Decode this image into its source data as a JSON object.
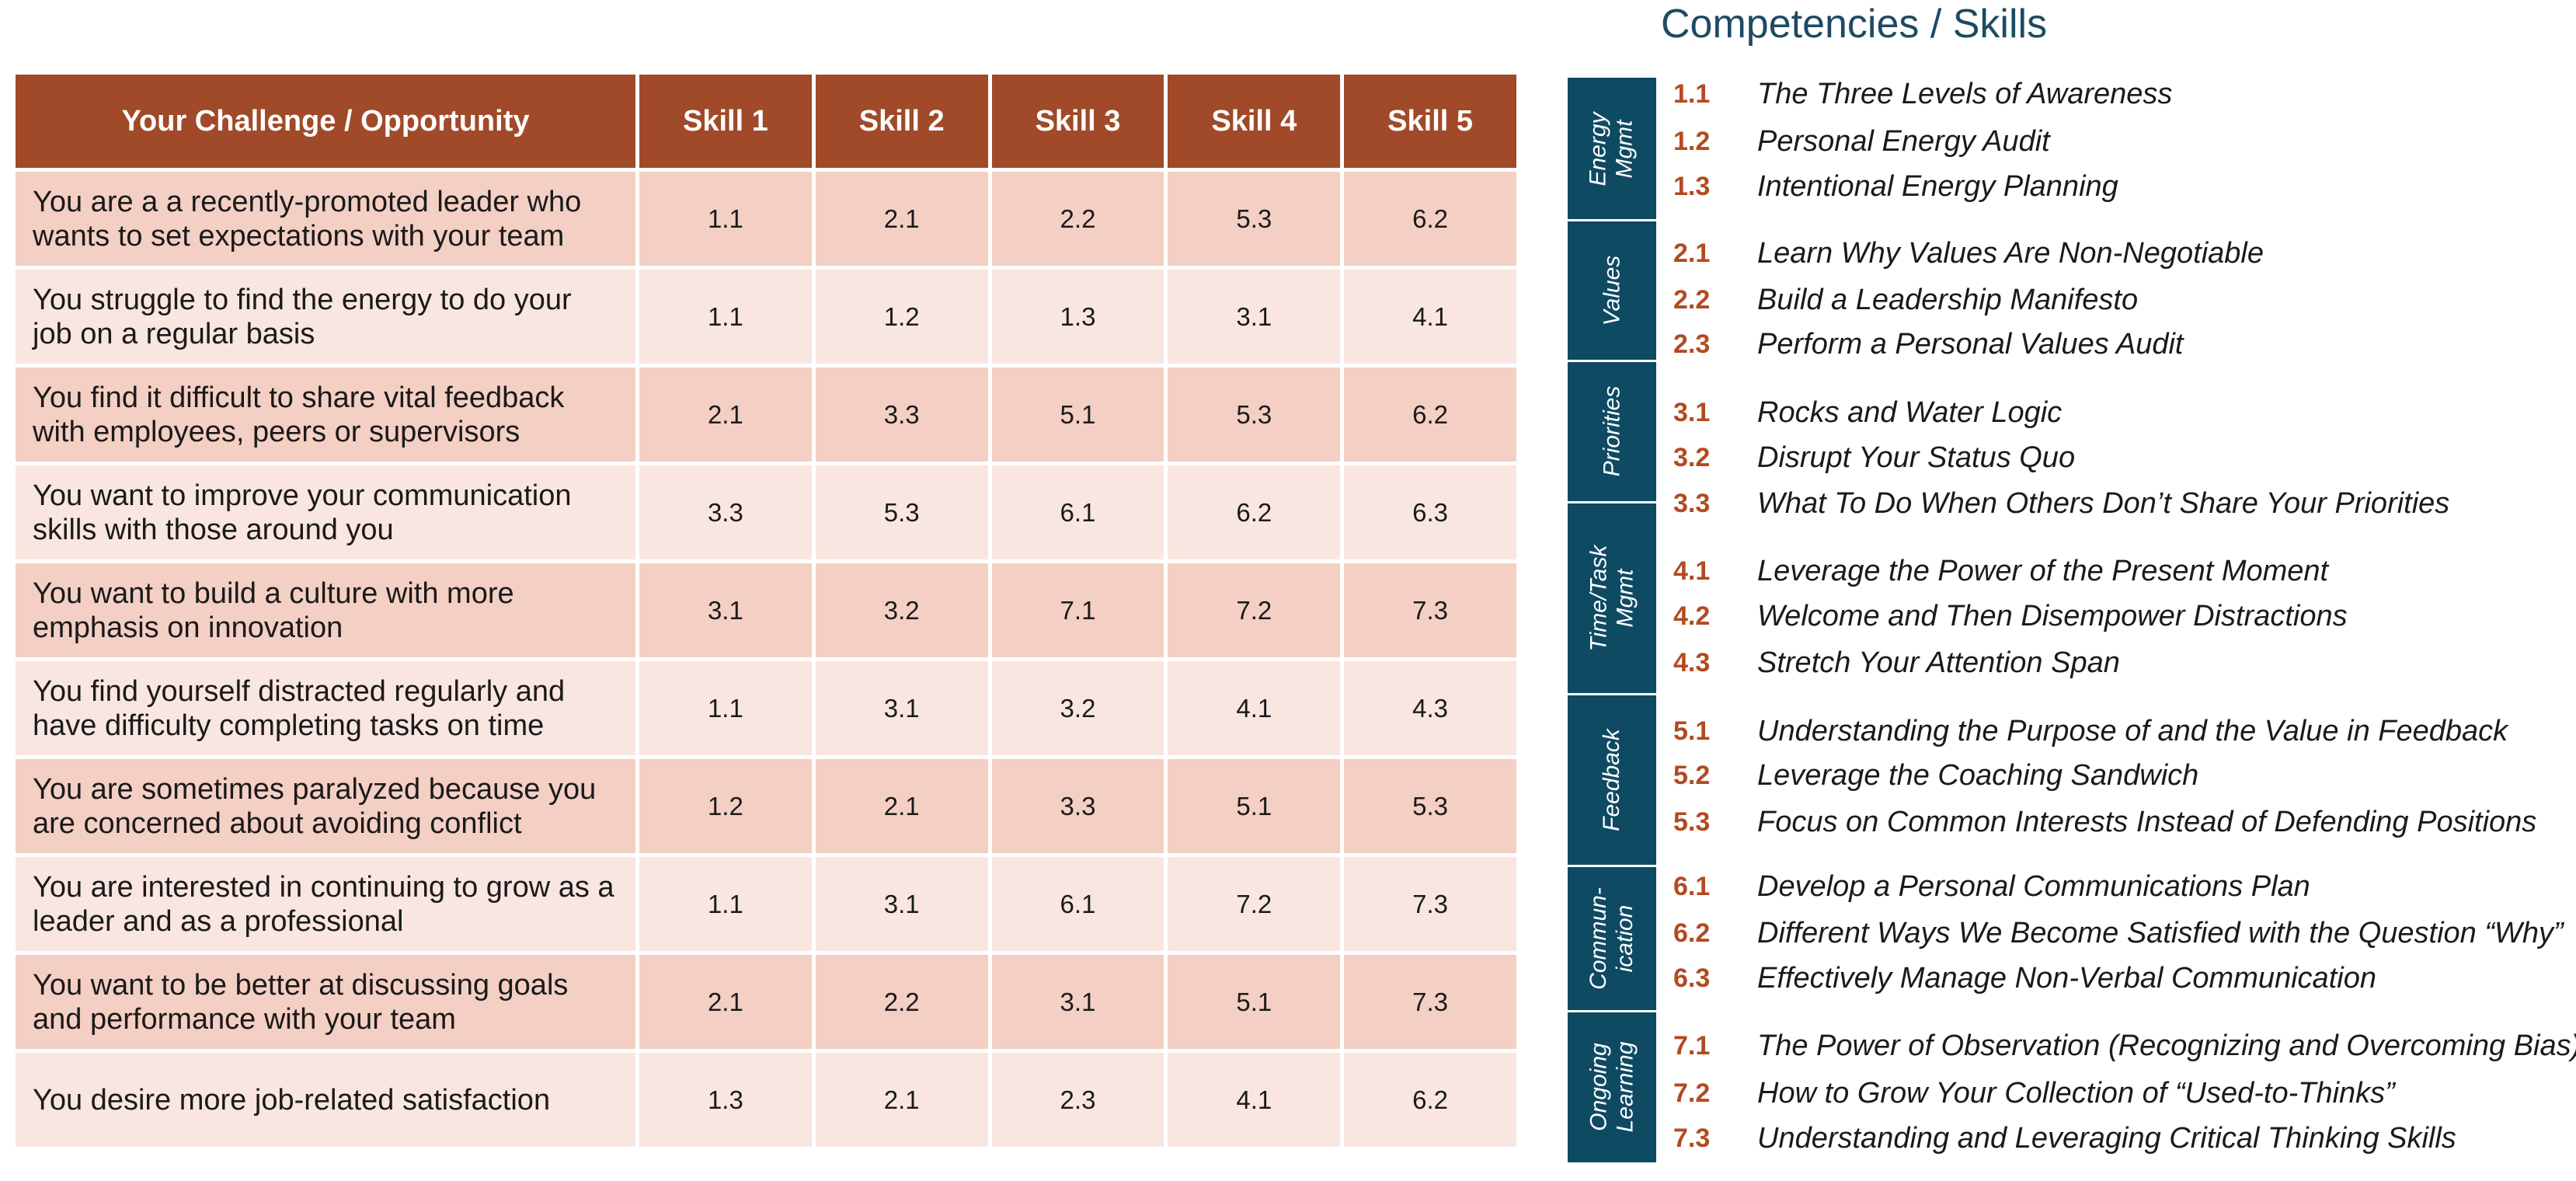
{
  "table": {
    "headers": [
      "Your Challenge / Opportunity",
      "Skill 1",
      "Skill 2",
      "Skill 3",
      "Skill 4",
      "Skill 5"
    ],
    "rows": [
      {
        "challenge": "You are a a recently-promoted leader who wants to set expectations with your team",
        "skills": [
          "1.1",
          "2.1",
          "2.2",
          "5.3",
          "6.2"
        ]
      },
      {
        "challenge": "You struggle to find the energy to do your job on a regular basis",
        "skills": [
          "1.1",
          "1.2",
          "1.3",
          "3.1",
          "4.1"
        ]
      },
      {
        "challenge": "You find it difficult to share vital feedback with employees, peers or supervisors",
        "skills": [
          "2.1",
          "3.3",
          "5.1",
          "5.3",
          "6.2"
        ]
      },
      {
        "challenge": "You want to improve your communication skills with those around you",
        "skills": [
          "3.3",
          "5.3",
          "6.1",
          "6.2",
          "6.3"
        ]
      },
      {
        "challenge": "You want to build a culture with more emphasis on innovation",
        "skills": [
          "3.1",
          "3.2",
          "7.1",
          "7.2",
          "7.3"
        ]
      },
      {
        "challenge": "You find yourself distracted regularly and have difficulty completing tasks on time",
        "skills": [
          "1.1",
          "3.1",
          "3.2",
          "4.1",
          "4.3"
        ]
      },
      {
        "challenge": "You are sometimes paralyzed because you are concerned about avoiding conflict",
        "skills": [
          "1.2",
          "2.1",
          "3.3",
          "5.1",
          "5.3"
        ]
      },
      {
        "challenge": "You are interested in continuing to grow as a leader and as a professional",
        "skills": [
          "1.1",
          "3.1",
          "6.1",
          "7.2",
          "7.3"
        ]
      },
      {
        "challenge": "You want to be better at discussing goals and performance with your team",
        "skills": [
          "2.1",
          "2.2",
          "3.1",
          "5.1",
          "7.3"
        ]
      },
      {
        "challenge": "You desire more job-related satisfaction",
        "skills": [
          "1.3",
          "2.1",
          "2.3",
          "4.1",
          "6.2"
        ]
      }
    ]
  },
  "competencies": {
    "title": "Competencies / Skills",
    "categories": [
      {
        "label": "Energy\nMgmt",
        "skills": [
          {
            "num": "1.1",
            "name": "The Three Levels of Awareness"
          },
          {
            "num": "1.2",
            "name": "Personal Energy Audit"
          },
          {
            "num": "1.3",
            "name": "Intentional Energy Planning"
          }
        ]
      },
      {
        "label": "Values",
        "skills": [
          {
            "num": "2.1",
            "name": "Learn Why Values Are Non-Negotiable"
          },
          {
            "num": "2.2",
            "name": "Build a Leadership Manifesto"
          },
          {
            "num": "2.3",
            "name": "Perform a Personal Values Audit"
          }
        ]
      },
      {
        "label": "Priorities",
        "skills": [
          {
            "num": "3.1",
            "name": "Rocks and Water Logic"
          },
          {
            "num": "3.2",
            "name": "Disrupt Your Status Quo"
          },
          {
            "num": "3.3",
            "name": "What To Do When Others Don’t Share Your Priorities"
          }
        ]
      },
      {
        "label": "Time/Task\nMgmt",
        "skills": [
          {
            "num": "4.1",
            "name": "Leverage the Power of the Present Moment"
          },
          {
            "num": "4.2",
            "name": "Welcome and Then Disempower Distractions"
          },
          {
            "num": "4.3",
            "name": "Stretch Your Attention Span"
          }
        ]
      },
      {
        "label": "Feedback",
        "skills": [
          {
            "num": "5.1",
            "name": "Understanding the Purpose of and the Value in Feedback"
          },
          {
            "num": "5.2",
            "name": "Leverage the Coaching Sandwich"
          },
          {
            "num": "5.3",
            "name": "Focus on Common Interests Instead of Defending Positions"
          }
        ]
      },
      {
        "label": "Commun-\nication",
        "skills": [
          {
            "num": "6.1",
            "name": "Develop a Personal Communications Plan"
          },
          {
            "num": "6.2",
            "name": "Different Ways We Become Satisfied with the Question “Why”"
          },
          {
            "num": "6.3",
            "name": "Effectively Manage Non-Verbal Communication"
          }
        ]
      },
      {
        "label": "Ongoing\nLearning",
        "skills": [
          {
            "num": "7.1",
            "name": "The Power of Observation (Recognizing and Overcoming Bias)"
          },
          {
            "num": "7.2",
            "name": "How to Grow Your Collection of “Used-to-Thinks”"
          },
          {
            "num": "7.3",
            "name": "Understanding and Leveraging Critical Thinking Skills"
          }
        ]
      }
    ]
  },
  "colors": {
    "header_bg": "#a04a29",
    "row_dark": "#f4cfc3",
    "row_light": "#fae6e0",
    "category_bar": "#0f4a63",
    "skill_number": "#b34a20",
    "title": "#1d4a63"
  }
}
